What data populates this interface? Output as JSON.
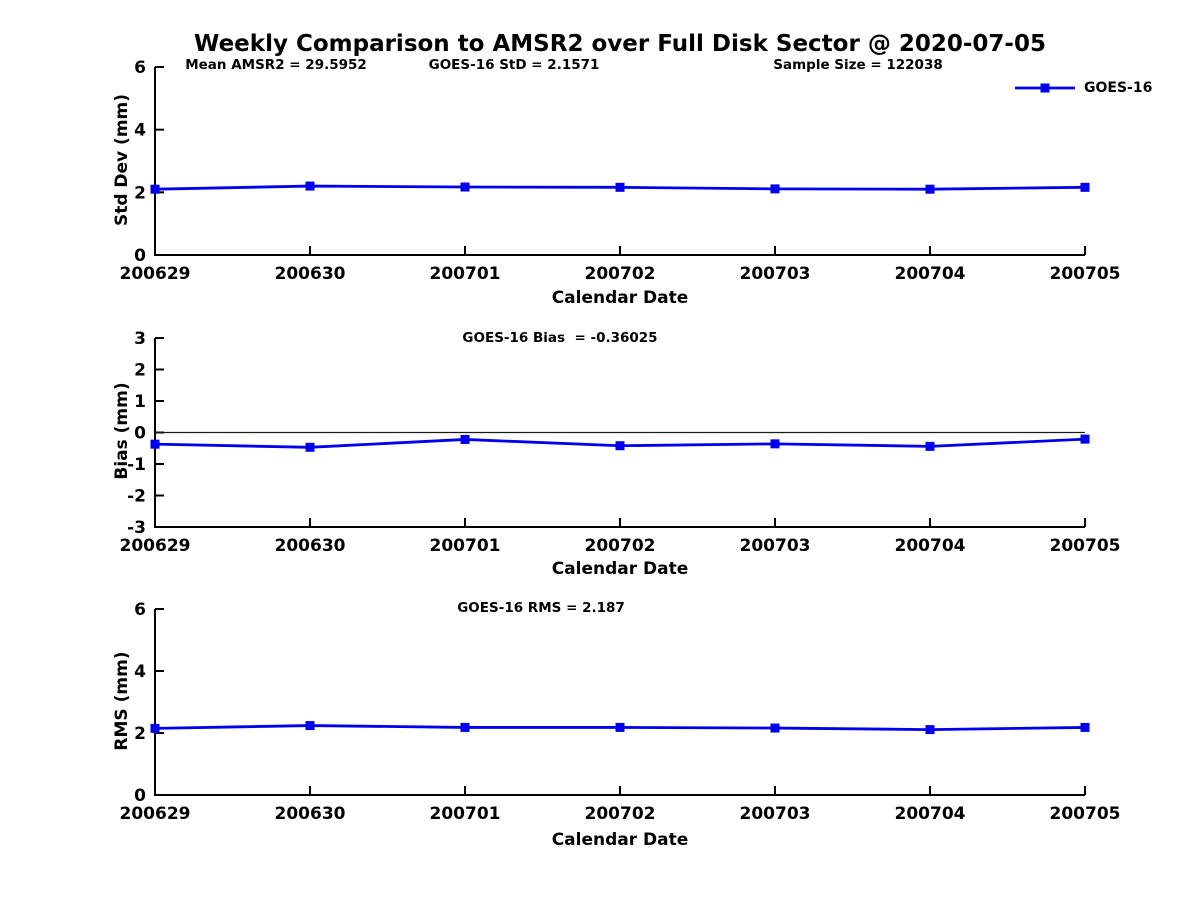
{
  "title": "Weekly Comparison to AMSR2 over Full Disk Sector @ 2020-07-05",
  "legend": {
    "label": "GOES-16",
    "color": "#0000ee",
    "position": "top-right"
  },
  "chart_data": [
    {
      "id": "stddev",
      "type": "line",
      "marker": "square",
      "grid": false,
      "ylabel": "Std Dev (mm)",
      "xlabel": "Calendar Date",
      "categories": [
        "200629",
        "200630",
        "200701",
        "200702",
        "200703",
        "200704",
        "200705"
      ],
      "series": [
        {
          "name": "GOES-16",
          "values": [
            2.1,
            2.2,
            2.17,
            2.16,
            2.11,
            2.1,
            2.16
          ]
        }
      ],
      "ylim": [
        0,
        6
      ],
      "yticks": [
        0,
        2,
        4,
        6
      ],
      "zero_line": false,
      "annotations": [
        "Mean AMSR2 = 29.5952",
        "GOES-16 StD = 2.1571",
        "Sample Size = 122038"
      ]
    },
    {
      "id": "bias",
      "type": "line",
      "marker": "square",
      "grid": false,
      "ylabel": "Bias (mm)",
      "xlabel": "Calendar Date",
      "categories": [
        "200629",
        "200630",
        "200701",
        "200702",
        "200703",
        "200704",
        "200705"
      ],
      "series": [
        {
          "name": "GOES-16",
          "values": [
            -0.37,
            -0.47,
            -0.22,
            -0.42,
            -0.36,
            -0.44,
            -0.21
          ]
        }
      ],
      "ylim": [
        -3,
        3
      ],
      "yticks": [
        3,
        2,
        1,
        0,
        -1,
        -2,
        -3
      ],
      "zero_line": true,
      "annotations": [
        "GOES-16 Bias  = -0.36025"
      ]
    },
    {
      "id": "rms",
      "type": "line",
      "marker": "square",
      "grid": false,
      "ylabel": "RMS (mm)",
      "xlabel": "Calendar Date",
      "categories": [
        "200629",
        "200630",
        "200701",
        "200702",
        "200703",
        "200704",
        "200705"
      ],
      "series": [
        {
          "name": "GOES-16",
          "values": [
            2.15,
            2.24,
            2.18,
            2.18,
            2.16,
            2.11,
            2.18
          ]
        }
      ],
      "ylim": [
        0,
        6
      ],
      "yticks": [
        0,
        2,
        4,
        6
      ],
      "zero_line": false,
      "annotations": [
        "GOES-16 RMS = 2.187"
      ]
    }
  ]
}
